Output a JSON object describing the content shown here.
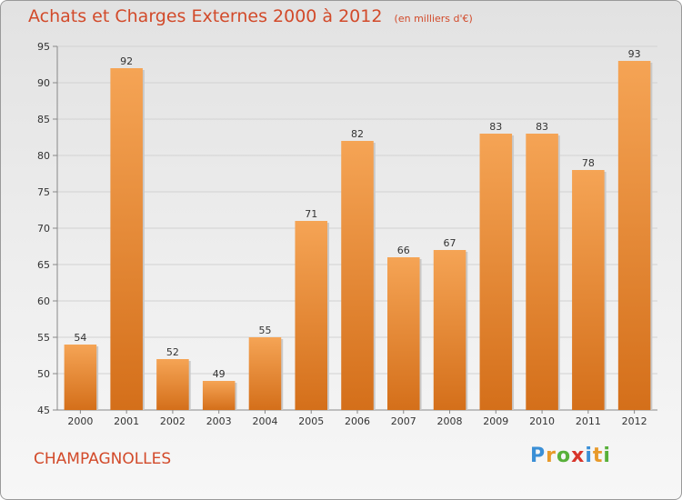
{
  "title": "Achats et Charges Externes 2000 à 2012",
  "subtitle": "(en milliers d'€)",
  "footer": {
    "commune": "CHAMPAGNOLLES"
  },
  "logo": {
    "text": "Proxiti",
    "letter_colors": [
      "#3a8fd6",
      "#e89a2a",
      "#58b03a",
      "#d8342a",
      "#3a8fd6",
      "#e89a2a",
      "#58b03a"
    ]
  },
  "colors": {
    "bar_top": "#f5a455",
    "bar_bottom": "#d46f1a",
    "title": "#d24a2a"
  },
  "chart_data": {
    "type": "bar",
    "categories": [
      "2000",
      "2001",
      "2002",
      "2003",
      "2004",
      "2005",
      "2006",
      "2007",
      "2008",
      "2009",
      "2010",
      "2011",
      "2012"
    ],
    "values": [
      54,
      92,
      52,
      49,
      55,
      71,
      82,
      66,
      67,
      83,
      83,
      78,
      93
    ],
    "ylim": [
      45,
      95
    ],
    "yticks": [
      45,
      50,
      55,
      60,
      65,
      70,
      75,
      80,
      85,
      90,
      95
    ],
    "grid": true
  }
}
